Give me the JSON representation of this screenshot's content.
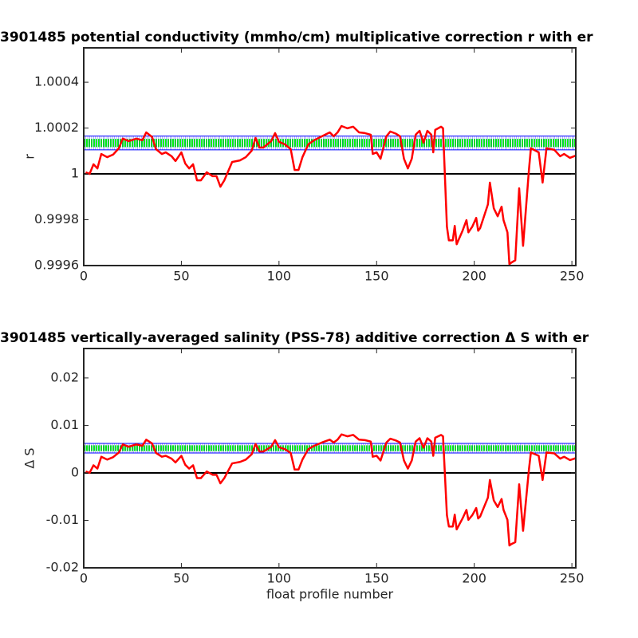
{
  "chart_data": [
    {
      "type": "line",
      "title": "3901485 potential conductivity (mmho/cm) multiplicative correction r with er",
      "ylabel": "r",
      "x": [
        1,
        3,
        5,
        7,
        9,
        12,
        15,
        18,
        20,
        23,
        27,
        30,
        32,
        35,
        37,
        40,
        42,
        45,
        47,
        50,
        52,
        54,
        56,
        58,
        60,
        63,
        66,
        68,
        70,
        72,
        76,
        80,
        83,
        86,
        88,
        90,
        92,
        96,
        98,
        100,
        103,
        106,
        108,
        110,
        112,
        115,
        118,
        122,
        126,
        128,
        130,
        132,
        135,
        138,
        141,
        144,
        147,
        148,
        150,
        152,
        155,
        157,
        160,
        162,
        164,
        166,
        168,
        170,
        172,
        174,
        176,
        178,
        179,
        180,
        183,
        184,
        186,
        187,
        189,
        190,
        191,
        194,
        196,
        197,
        199,
        201,
        202,
        203,
        205,
        207,
        208,
        210,
        212,
        214,
        215,
        217,
        218,
        219,
        221,
        223,
        225,
        228,
        229,
        233,
        235,
        237,
        241,
        244,
        246,
        249,
        252
      ],
      "series": [
        {
          "color": "#ff0000",
          "values": [
            1.000007,
            1,
            1.000042,
            1.000024,
            1.000087,
            1.000073,
            1.000084,
            1.000112,
            1.000154,
            1.000143,
            1.000154,
            1.000147,
            1.000181,
            1.000161,
            1.000108,
            1.000087,
            1.000094,
            1.000077,
            1.000056,
            1.000094,
            1.000045,
            1.000024,
            1.000042,
            0.999972,
            0.999972,
            1.000007,
            0.99999,
            0.99999,
            0.999944,
            0.999972,
            1.000052,
            1.000059,
            1.000073,
            1.000101,
            1.000157,
            1.000115,
            1.000115,
            1.000143,
            1.000178,
            1.00014,
            1.000129,
            1.000108,
            1.000017,
            1.000017,
            1.000073,
            1.000129,
            1.000147,
            1.000164,
            1.000181,
            1.000164,
            1.000181,
            1.000209,
            1.000199,
            1.000206,
            1.000181,
            1.000178,
            1.000171,
            1.000087,
            1.000094,
            1.000066,
            1.000164,
            1.000185,
            1.000175,
            1.000164,
            1.000066,
            1.000024,
            1.000066,
            1.000171,
            1.000188,
            1.000136,
            1.000188,
            1.000171,
            1.000094,
            1.000192,
            1.000206,
            1.000199,
            0.99977,
            0.99971,
            0.99971,
            0.999773,
            0.999693,
            0.999752,
            0.999798,
            0.999745,
            0.99977,
            0.999808,
            0.999752,
            0.999763,
            0.999815,
            0.999867,
            0.999962,
            0.99985,
            0.999815,
            0.999857,
            0.999798,
            0.999745,
            0.999606,
            0.999613,
            0.999623,
            0.999937,
            0.999686,
            1.000017,
            1.000112,
            1.000094,
            0.999962,
            1.000112,
            1.000105,
            1.000077,
            1.000087,
            1.00007,
            1.00008
          ]
        }
      ],
      "error_band": {
        "mean": 1.000135,
        "upper": 1.000165,
        "lower": 1.000105,
        "mean_color": "#00ff00",
        "bound_color": "#0000ff"
      },
      "baseline": {
        "value": 1,
        "color": "#000000"
      },
      "xlim": [
        0,
        252
      ],
      "xticks": [
        0,
        50,
        100,
        150,
        200,
        250
      ],
      "ylim": [
        0.9996,
        1.00055
      ],
      "yticks": [
        0.9996,
        0.9998,
        1,
        1.0002,
        1.0004
      ]
    },
    {
      "type": "line",
      "title": "3901485 vertically-averaged salinity (PSS-78) additive correction Δ S with er",
      "ylabel": "Δ S",
      "xlabel": "float profile number",
      "x": [
        1,
        3,
        5,
        7,
        9,
        12,
        15,
        18,
        20,
        23,
        27,
        30,
        32,
        35,
        37,
        40,
        42,
        45,
        47,
        50,
        52,
        54,
        56,
        58,
        60,
        63,
        66,
        68,
        70,
        72,
        76,
        80,
        83,
        86,
        88,
        90,
        92,
        96,
        98,
        100,
        103,
        106,
        108,
        110,
        112,
        115,
        118,
        122,
        126,
        128,
        130,
        132,
        135,
        138,
        141,
        144,
        147,
        148,
        150,
        152,
        155,
        157,
        160,
        162,
        164,
        166,
        168,
        170,
        172,
        174,
        176,
        178,
        179,
        180,
        183,
        184,
        186,
        187,
        189,
        190,
        191,
        194,
        196,
        197,
        199,
        201,
        202,
        203,
        205,
        207,
        208,
        210,
        212,
        214,
        215,
        217,
        218,
        219,
        221,
        223,
        225,
        228,
        229,
        233,
        235,
        237,
        241,
        244,
        246,
        249,
        252
      ],
      "series": [
        {
          "color": "#ff0000",
          "values": [
            0.0003,
            0,
            0.0016,
            0.0009,
            0.0034,
            0.0028,
            0.0033,
            0.0043,
            0.006,
            0.0055,
            0.006,
            0.0057,
            0.007,
            0.0062,
            0.0042,
            0.0034,
            0.0036,
            0.003,
            0.0022,
            0.0036,
            0.0017,
            0.0009,
            0.0016,
            -0.0011,
            -0.0011,
            0.0003,
            -0.0004,
            -0.0004,
            -0.0022,
            -0.0011,
            0.002,
            0.0023,
            0.0028,
            0.0039,
            0.0061,
            0.0045,
            0.0045,
            0.0055,
            0.0069,
            0.0054,
            0.005,
            0.0042,
            0.0007,
            0.0007,
            0.0028,
            0.005,
            0.0057,
            0.0064,
            0.007,
            0.0064,
            0.007,
            0.0081,
            0.0077,
            0.008,
            0.007,
            0.0069,
            0.0066,
            0.0034,
            0.0036,
            0.0026,
            0.0064,
            0.0072,
            0.0068,
            0.0064,
            0.0026,
            0.0009,
            0.0026,
            0.0066,
            0.0073,
            0.0053,
            0.0073,
            0.0066,
            0.0036,
            0.0074,
            0.008,
            0.0077,
            -0.0089,
            -0.0113,
            -0.0113,
            -0.0088,
            -0.0119,
            -0.0096,
            -0.0078,
            -0.0099,
            -0.0089,
            -0.0074,
            -0.0096,
            -0.0092,
            -0.0072,
            -0.0052,
            -0.0015,
            -0.0058,
            -0.0072,
            -0.0055,
            -0.0078,
            -0.0099,
            -0.0153,
            -0.015,
            -0.0146,
            -0.0024,
            -0.0122,
            0.0007,
            0.0043,
            0.0036,
            -0.0015,
            0.0043,
            0.0041,
            0.003,
            0.0034,
            0.0027,
            0.0031
          ]
        }
      ],
      "error_band": {
        "mean": 0.0052,
        "upper": 0.0062,
        "lower": 0.0042,
        "mean_color": "#00ff00",
        "bound_color": "#0000ff"
      },
      "baseline": {
        "value": 0,
        "color": "#000000"
      },
      "xlim": [
        0,
        252
      ],
      "xticks": [
        0,
        50,
        100,
        150,
        200,
        250
      ],
      "ylim": [
        -0.02,
        0.0262
      ],
      "yticks": [
        -0.02,
        -0.01,
        0,
        0.01,
        0.02
      ]
    }
  ]
}
